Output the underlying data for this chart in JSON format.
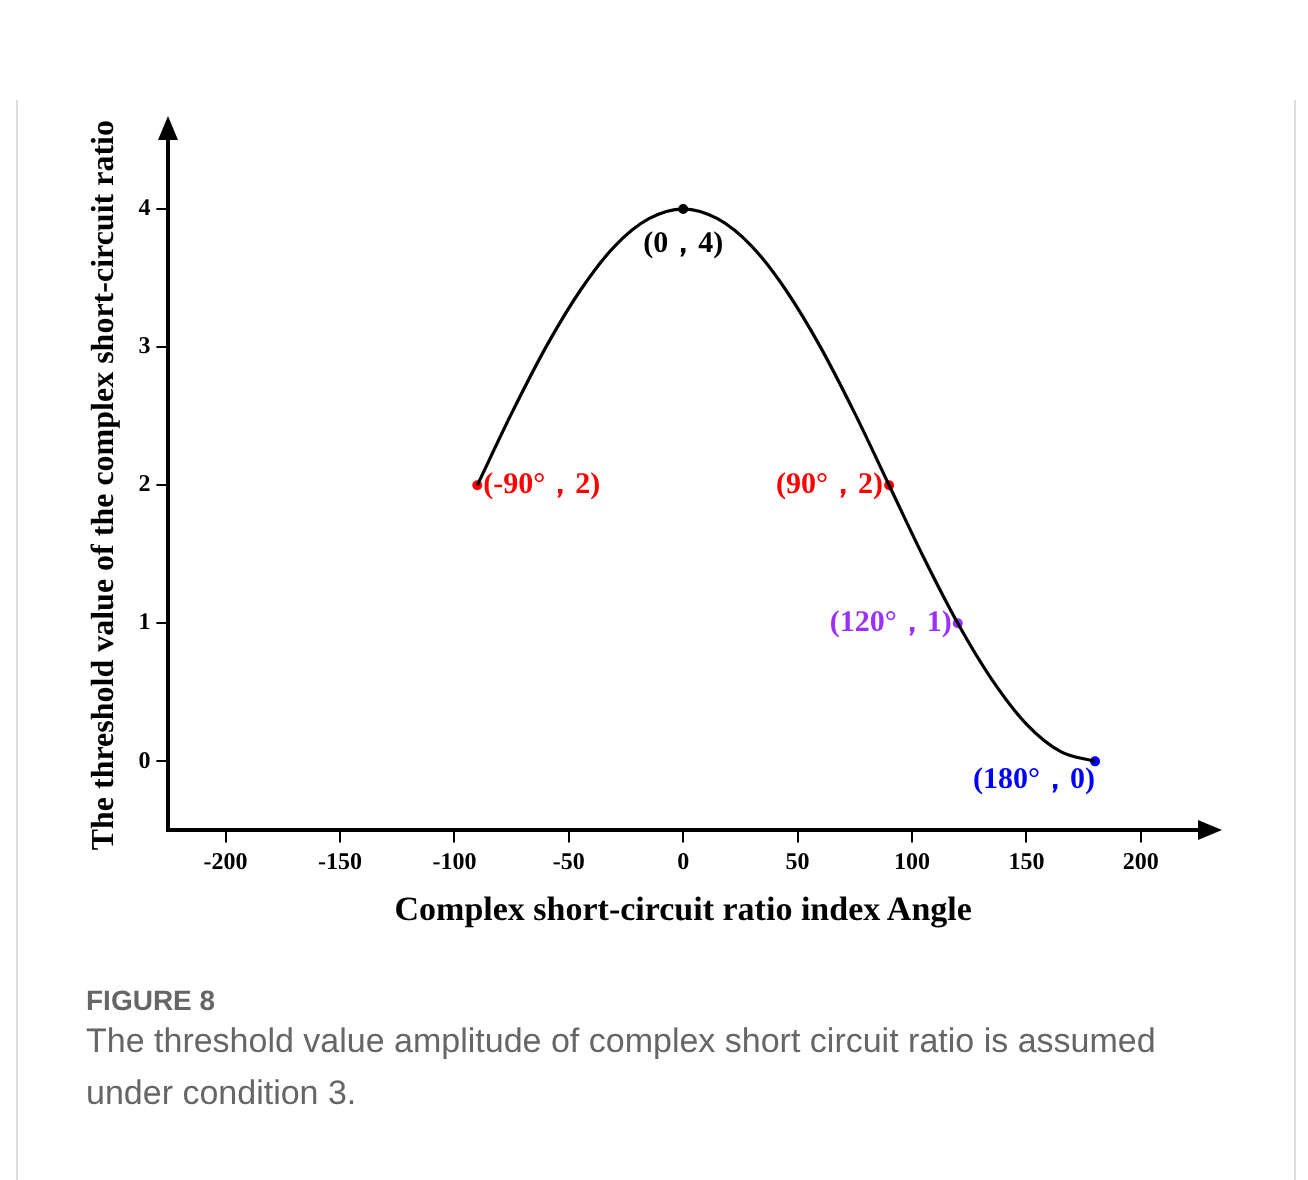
{
  "chart_data": {
    "type": "line",
    "xlabel": "Complex short-circuit ratio index Angle",
    "ylabel": "The threshold value of the complex short-circuit ratio",
    "xlim": [
      -225,
      225
    ],
    "ylim": [
      -0.5,
      4.5
    ],
    "xticks": [
      -200,
      -150,
      -100,
      -50,
      0,
      50,
      100,
      150,
      200
    ],
    "yticks": [
      0,
      1,
      2,
      3,
      4
    ],
    "grid": false,
    "legend": false,
    "series": [
      {
        "color": "#000000",
        "marker": "none",
        "line_style": "solid",
        "x": [
          -90,
          -75,
          -60,
          -45,
          -30,
          -15,
          0,
          15,
          30,
          45,
          60,
          75,
          90,
          105,
          120,
          135,
          150,
          165,
          180
        ],
        "values": [
          2,
          2.52,
          3,
          3.41,
          3.73,
          3.93,
          4,
          3.93,
          3.73,
          3.41,
          3,
          2.52,
          2,
          1.48,
          1,
          0.59,
          0.27,
          0.07,
          0
        ]
      },
      {
        "type": "scatter",
        "marker": "circle",
        "x": [
          -90,
          0,
          90,
          120,
          180
        ],
        "values": [
          2,
          4,
          2,
          1,
          0
        ],
        "colors": [
          "#ff0000",
          "#000000",
          "#ff0000",
          "#9b30ff",
          "#0000ff"
        ]
      }
    ],
    "annotations": [
      {
        "text": "(-90°，2)",
        "x": -90,
        "y": 2
      },
      {
        "text": "(0，4)",
        "x": 0,
        "y": 4
      },
      {
        "text": "(90°，2)",
        "x": 90,
        "y": 2
      },
      {
        "text": "(120°，1)",
        "x": 120,
        "y": 1
      },
      {
        "text": "(180°，0)",
        "x": 180,
        "y": 0
      },
      "FIGURE 8",
      "The threshold value amplitude of complex short circuit ratio is assumed under condition 3."
    ]
  }
}
